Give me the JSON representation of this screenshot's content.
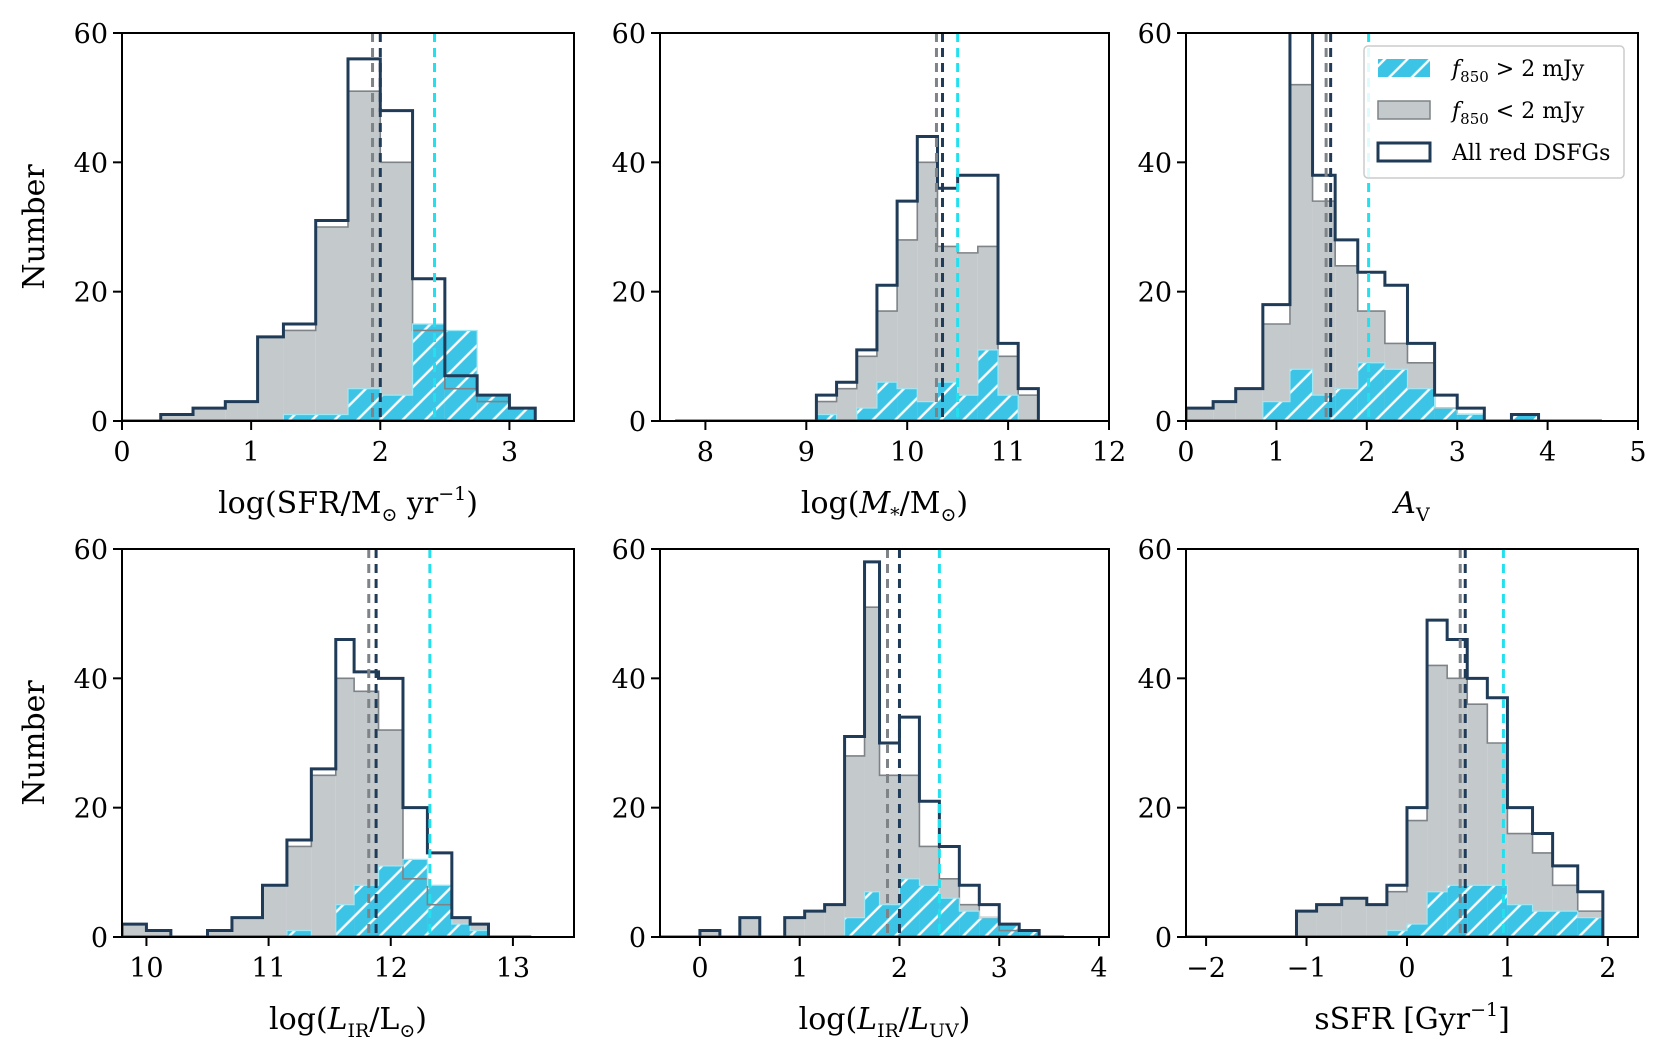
{
  "figure": {
    "ylabel": "Number",
    "legend": {
      "position": "top-right",
      "entries": [
        {
          "label": "f850 > 2 mJy",
          "main": "f",
          "sub": "850",
          "rest": " > 2 mJy",
          "style": "hatched-cyan"
        },
        {
          "label": "f850 < 2 mJy",
          "main": "f",
          "sub": "850",
          "rest": " < 2 mJy",
          "style": "filled-gray"
        },
        {
          "label": "All red DSFGs",
          "main": "All red DSFGs",
          "sub": "",
          "rest": "",
          "style": "outline"
        }
      ]
    },
    "colors": {
      "all": "#1f3b57",
      "faint_fill": "#c4c9cc",
      "faint_line": "#7d8387",
      "bright": "#3cc4e6",
      "bright_line": "#22e0ee"
    }
  },
  "chart_data": [
    {
      "type": "bar",
      "id": "sfr",
      "xlabel": {
        "pre": "log(SFR/M",
        "sub": "⊙",
        "mid": " yr",
        "sup": "−1",
        "post": ")"
      },
      "ylabel": "Number",
      "xlim": [
        0,
        3.5
      ],
      "ylim": [
        0,
        60
      ],
      "xticks": [
        0,
        1,
        2,
        3
      ],
      "xtick_labels": [
        "0",
        "1",
        "2",
        "3"
      ],
      "yticks": [
        0,
        20,
        40,
        60
      ],
      "edges": [
        0.0,
        0.3,
        0.55,
        0.8,
        1.05,
        1.25,
        1.5,
        1.75,
        2.0,
        2.25,
        2.5,
        2.75,
        3.0,
        3.2
      ],
      "series": [
        {
          "name": "All red DSFGs",
          "values": [
            0,
            1,
            2,
            3,
            13,
            15,
            31,
            56,
            48,
            22,
            7,
            4,
            2
          ]
        },
        {
          "name": "f850 < 2 mJy",
          "values": [
            0,
            1,
            2,
            3,
            13,
            14,
            30,
            51,
            40,
            14,
            5,
            3,
            2
          ]
        },
        {
          "name": "f850 > 2 mJy",
          "values": [
            0,
            0,
            0,
            0,
            0,
            1,
            1,
            5,
            4,
            15,
            14,
            4,
            2
          ]
        }
      ],
      "medians": {
        "faint": 1.94,
        "all": 2.0,
        "bright": 2.42
      }
    },
    {
      "type": "bar",
      "id": "mstar",
      "xlabel": {
        "pre": "log(",
        "ital": "M",
        "sub": "*",
        "mid": "/M",
        "sub2": "⊙",
        "post": ")"
      },
      "ylabel": "Number",
      "xlim": [
        7.55,
        12.0
      ],
      "ylim": [
        0,
        60
      ],
      "xticks": [
        8,
        9,
        10,
        11,
        12
      ],
      "xtick_labels": [
        "8",
        "9",
        "10",
        "11",
        "12"
      ],
      "yticks": [
        0,
        20,
        40,
        60
      ],
      "edges": [
        7.7,
        9.1,
        9.3,
        9.5,
        9.7,
        9.9,
        10.1,
        10.3,
        10.5,
        10.7,
        10.9,
        11.1,
        11.3
      ],
      "series": [
        {
          "name": "All red DSFGs",
          "values": [
            0,
            4,
            6,
            11,
            21,
            34,
            44,
            36,
            38,
            38,
            12,
            5
          ]
        },
        {
          "name": "f850 < 2 mJy",
          "values": [
            0,
            3,
            5,
            10,
            17,
            28,
            40,
            27,
            26,
            27,
            10,
            4
          ]
        },
        {
          "name": "f850 > 2 mJy",
          "values": [
            0,
            1,
            0,
            2,
            6,
            5,
            3,
            6,
            4,
            11,
            4,
            0
          ]
        }
      ],
      "medians": {
        "faint": 10.29,
        "all": 10.35,
        "bright": 10.5
      }
    },
    {
      "type": "bar",
      "id": "av",
      "xlabel": {
        "ital": "A",
        "sub": "V"
      },
      "ylabel": "Number",
      "xlim": [
        0,
        5
      ],
      "ylim": [
        0,
        60
      ],
      "xticks": [
        0,
        1,
        2,
        3,
        4,
        5
      ],
      "xtick_labels": [
        "0",
        "1",
        "2",
        "3",
        "4",
        "5"
      ],
      "yticks": [
        0,
        20,
        40,
        60
      ],
      "edges": [
        0.0,
        0.3,
        0.55,
        0.85,
        1.15,
        1.4,
        1.65,
        1.9,
        2.2,
        2.45,
        2.75,
        3.0,
        3.3,
        3.6,
        3.9,
        4.2,
        4.6
      ],
      "series": [
        {
          "name": "All red DSFGs",
          "values": [
            2,
            3,
            5,
            18,
            61,
            38,
            28,
            23,
            21,
            12,
            4,
            2,
            0,
            1,
            0,
            0
          ]
        },
        {
          "name": "f850 < 2 mJy",
          "values": [
            2,
            3,
            5,
            15,
            52,
            34,
            24,
            17,
            12,
            9,
            2,
            1,
            0,
            0,
            0,
            0
          ]
        },
        {
          "name": "f850 > 2 mJy",
          "values": [
            0,
            0,
            0,
            3,
            8,
            4,
            5,
            9,
            8,
            5,
            2,
            1,
            0,
            1,
            0,
            0
          ]
        }
      ],
      "medians": {
        "faint": 1.55,
        "all": 1.6,
        "bright": 2.02
      }
    },
    {
      "type": "bar",
      "id": "lir",
      "xlabel": {
        "pre": "log(",
        "ital": "L",
        "sub": "IR",
        "mid": "/L",
        "sub2": "⊙",
        "post": ")"
      },
      "ylabel": "Number",
      "xlim": [
        9.8,
        13.5
      ],
      "ylim": [
        0,
        60
      ],
      "xticks": [
        10,
        11,
        12,
        13
      ],
      "xtick_labels": [
        "10",
        "11",
        "12",
        "13"
      ],
      "yticks": [
        0,
        20,
        40,
        60
      ],
      "edges": [
        9.8,
        10.0,
        10.2,
        10.5,
        10.7,
        10.95,
        11.15,
        11.35,
        11.55,
        11.7,
        11.9,
        12.1,
        12.3,
        12.5,
        12.65,
        12.8,
        13.15
      ],
      "series": [
        {
          "name": "All red DSFGs",
          "values": [
            2,
            1,
            0,
            1,
            3,
            8,
            15,
            26,
            46,
            41,
            40,
            20,
            13,
            3,
            2,
            0
          ]
        },
        {
          "name": "f850 < 2 mJy",
          "values": [
            2,
            1,
            0,
            1,
            3,
            8,
            14,
            25,
            40,
            38,
            32,
            9,
            5,
            3,
            2,
            0
          ]
        },
        {
          "name": "f850 > 2 mJy",
          "values": [
            0,
            0,
            0,
            0,
            0,
            0,
            1,
            0,
            5,
            8,
            11,
            12,
            8,
            2,
            1,
            0
          ]
        }
      ],
      "medians": {
        "faint": 11.82,
        "all": 11.88,
        "bright": 12.32
      }
    },
    {
      "type": "bar",
      "id": "irx",
      "xlabel": {
        "pre": "log(",
        "ital": "L",
        "sub": "IR",
        "mid": "/",
        "ital2": "L",
        "sub2": "UV",
        "post": ")"
      },
      "ylabel": "Number",
      "xlim": [
        -0.4,
        4.1
      ],
      "ylim": [
        0,
        60
      ],
      "xticks": [
        0,
        1,
        2,
        3,
        4
      ],
      "xtick_labels": [
        "0",
        "1",
        "2",
        "3",
        "4"
      ],
      "yticks": [
        0,
        20,
        40,
        60
      ],
      "edges": [
        -0.4,
        0.0,
        0.2,
        0.4,
        0.6,
        0.85,
        1.05,
        1.25,
        1.45,
        1.65,
        1.8,
        2.0,
        2.2,
        2.4,
        2.6,
        2.8,
        3.0,
        3.2,
        3.4,
        3.65
      ],
      "series": [
        {
          "name": "All red DSFGs",
          "values": [
            0,
            1,
            0,
            3,
            0,
            3,
            4,
            5,
            31,
            58,
            30,
            34,
            21,
            14,
            8,
            5,
            2,
            1,
            0
          ]
        },
        {
          "name": "f850 < 2 mJy",
          "values": [
            0,
            1,
            0,
            3,
            0,
            3,
            4,
            5,
            28,
            51,
            25,
            25,
            14,
            9,
            5,
            3,
            1,
            1,
            0
          ]
        },
        {
          "name": "f850 > 2 mJy",
          "values": [
            0,
            0,
            0,
            0,
            0,
            0,
            0,
            0,
            3,
            7,
            5,
            9,
            8,
            6,
            4,
            3,
            2,
            1,
            0
          ]
        }
      ],
      "medians": {
        "faint": 1.88,
        "all": 2.0,
        "bright": 2.4
      }
    },
    {
      "type": "bar",
      "id": "ssfr",
      "xlabel": {
        "pre": "sSFR [Gyr",
        "sup": "−1",
        "post": "]"
      },
      "ylabel": "Number",
      "xlim": [
        -2.2,
        2.3
      ],
      "ylim": [
        0,
        60
      ],
      "xticks": [
        -2,
        -1,
        0,
        1,
        2
      ],
      "xtick_labels": [
        "−2",
        "−1",
        "0",
        "1",
        "2"
      ],
      "yticks": [
        0,
        20,
        40,
        60
      ],
      "edges": [
        -2.2,
        -1.1,
        -0.9,
        -0.65,
        -0.4,
        -0.2,
        0.0,
        0.2,
        0.4,
        0.6,
        0.8,
        1.0,
        1.25,
        1.45,
        1.7,
        1.95
      ],
      "series": [
        {
          "name": "All red DSFGs",
          "values": [
            0,
            4,
            5,
            6,
            5,
            8,
            20,
            49,
            46,
            40,
            37,
            20,
            16,
            11,
            7
          ]
        },
        {
          "name": "f850 < 2 mJy",
          "values": [
            0,
            4,
            5,
            6,
            5,
            7,
            18,
            42,
            40,
            36,
            30,
            16,
            13,
            8,
            4
          ]
        },
        {
          "name": "f850 > 2 mJy",
          "values": [
            0,
            0,
            0,
            0,
            0,
            1,
            2,
            7,
            8,
            8,
            8,
            5,
            4,
            4,
            3
          ]
        }
      ],
      "medians": {
        "faint": 0.53,
        "all": 0.58,
        "bright": 0.96
      }
    }
  ]
}
